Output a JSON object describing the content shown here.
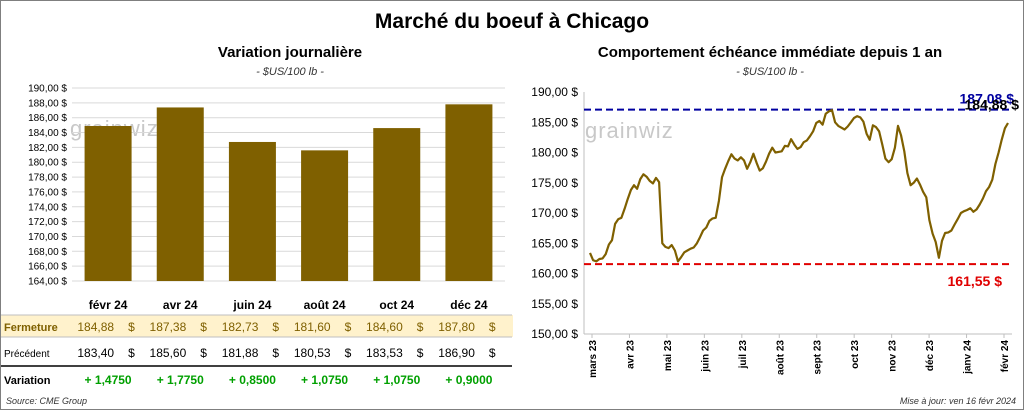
{
  "title": "Marché du boeuf à Chicago",
  "left": {
    "title": "Variation  journalière",
    "subtitle": "- $US/100 lb -",
    "watermark": "grainwiz",
    "table": {
      "rows": [
        {
          "label": "Fermeture",
          "values": [
            "184,88",
            "187,38",
            "182,73",
            "181,60",
            "184,60",
            "187,80"
          ],
          "unit": "$"
        },
        {
          "label": "Précédent",
          "values": [
            "183,40",
            "185,60",
            "181,88",
            "180,53",
            "183,53",
            "186,90"
          ],
          "unit": "$"
        },
        {
          "label": "Variation",
          "values": [
            "+ 1,4750",
            "+ 1,7750",
            "+ 0,8500",
            "+ 1,0750",
            "+ 1,0750",
            "+ 0,9000"
          ]
        }
      ]
    }
  },
  "right": {
    "title": "Comportement  échéance immédiate depuis 1 an",
    "subtitle": "- $US/100 lb -",
    "watermark": "grainwiz",
    "high_label": "187,08 $",
    "last_label": "184,88 $",
    "low_label": "161,55 $"
  },
  "footer": {
    "source": "Source: CME Group",
    "updated": "Mise à jour: ven 16 févr 2024"
  },
  "colors": {
    "bar": "#7f6000",
    "line": "#7f6000",
    "high": "#0000a0",
    "low": "#e00000",
    "row_highlight": "#fff2cc",
    "positive": "#00a000"
  },
  "chart_data": [
    {
      "type": "bar",
      "title": "Variation  journalière",
      "subtitle": "- $US/100 lb -",
      "categories": [
        "févr 24",
        "avr 24",
        "juin 24",
        "août 24",
        "oct 24",
        "déc 24"
      ],
      "values": [
        184.88,
        187.38,
        182.73,
        181.6,
        184.6,
        187.8
      ],
      "ylim": [
        164,
        190
      ],
      "yticks": [
        "164,00 $",
        "166,00 $",
        "168,00 $",
        "170,00 $",
        "172,00 $",
        "174,00 $",
        "176,00 $",
        "178,00 $",
        "180,00 $",
        "182,00 $",
        "184,00 $",
        "186,00 $",
        "188,00 $",
        "190,00 $"
      ],
      "grid": true
    },
    {
      "type": "line",
      "title": "Comportement  échéance immédiate depuis 1 an",
      "subtitle": "- $US/100 lb -",
      "ylim": [
        150,
        190
      ],
      "yticks": [
        "150,00 $",
        "155,00 $",
        "160,00 $",
        "165,00 $",
        "170,00 $",
        "175,00 $",
        "180,00 $",
        "185,00 $",
        "190,00 $"
      ],
      "xticks": [
        "mars 23",
        "avr 23",
        "mai 23",
        "juin 23",
        "juil 23",
        "août 23",
        "sept 23",
        "oct 23",
        "nov 23",
        "déc 23",
        "janv 24",
        "févr 24"
      ],
      "series": [
        {
          "values": [
            163.4,
            162.2,
            162.0,
            162.4,
            162.5,
            163.2,
            164.8,
            165.5,
            168.2,
            169.0,
            169.2,
            170.7,
            172.3,
            173.8,
            174.6,
            174.0,
            175.6,
            176.4,
            176.0,
            175.3,
            174.9,
            175.8,
            175.1,
            165.0,
            164.4,
            164.2,
            164.7,
            163.8,
            162.0,
            162.7,
            163.5,
            163.8,
            164.1,
            164.3,
            165.0,
            166.0,
            167.1,
            167.6,
            168.7,
            169.1,
            169.2,
            172.0,
            175.9,
            177.3,
            178.6,
            179.7,
            179.0,
            178.7,
            179.2,
            178.7,
            177.3,
            178.4,
            179.8,
            178.3,
            177.0,
            177.4,
            178.5,
            179.8,
            180.8,
            180.0,
            180.1,
            180.2,
            181.1,
            181.0,
            182.2,
            181.3,
            180.6,
            180.9,
            181.7,
            182.0,
            182.7,
            183.5,
            184.9,
            185.2,
            184.6,
            186.4,
            186.8,
            187.0,
            185.0,
            184.4,
            184.1,
            183.8,
            184.3,
            185.0,
            185.7,
            186.0,
            185.8,
            185.1,
            183.1,
            182.1,
            184.5,
            184.2,
            183.5,
            181.3,
            179.0,
            178.4,
            178.9,
            180.8,
            184.4,
            182.8,
            180.2,
            176.6,
            174.6,
            175.0,
            175.7,
            174.7,
            173.5,
            172.6,
            168.8,
            166.6,
            165.2,
            162.6,
            165.4,
            166.7,
            166.8,
            167.1,
            168.1,
            169.0,
            170.0,
            170.3,
            170.5,
            170.8,
            170.2,
            170.6,
            171.4,
            172.4,
            173.6,
            174.3,
            175.5,
            178.1,
            180.0,
            182.1,
            184.0,
            184.88
          ]
        }
      ],
      "high": 187.08,
      "low": 161.55,
      "last": 184.88,
      "grid": false
    }
  ]
}
